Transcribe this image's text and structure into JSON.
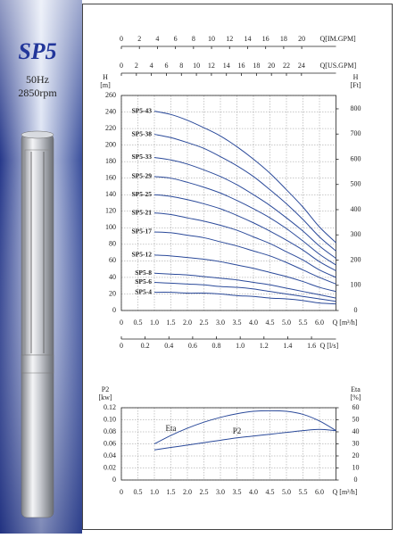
{
  "sidebar": {
    "model": "SP5",
    "frequency": "50Hz",
    "speed": "2850rpm"
  },
  "chart_data": [
    {
      "type": "line",
      "y_label": "H",
      "y_unit": "[m]",
      "y2_label": "H",
      "y2_unit": "[Ft]",
      "x_label": "Q [m³/h]",
      "x": [
        1.0,
        1.5,
        2.0,
        2.5,
        3.0,
        3.5,
        4.0,
        4.5,
        5.0,
        5.5,
        6.0,
        6.5
      ],
      "xlim": [
        0,
        6.5
      ],
      "xticks": [
        0,
        0.5,
        {
          "value": 1,
          "label": "1.0"
        },
        1.5,
        {
          "value": 2,
          "label": "2.0"
        },
        2.5,
        {
          "value": 3,
          "label": "3.0"
        },
        3.5,
        {
          "value": 4,
          "label": "4.0"
        },
        4.5,
        {
          "value": 5,
          "label": "5.0"
        },
        5.5,
        {
          "value": 6,
          "label": "6.0"
        }
      ],
      "ylim": [
        0,
        260
      ],
      "yticks": [
        0,
        20,
        40,
        60,
        80,
        100,
        120,
        140,
        160,
        180,
        200,
        220,
        240,
        260
      ],
      "y2lim": [
        0,
        853
      ],
      "y2ticks": [
        0,
        100,
        200,
        300,
        400,
        500,
        600,
        700,
        800
      ],
      "top_axes": [
        {
          "label": "Q[IM.GPM]",
          "lim": [
            0,
            23.8
          ],
          "ticks": [
            0,
            2,
            4,
            6,
            8,
            10,
            12,
            14,
            16,
            18,
            20
          ]
        },
        {
          "label": "Q[US.GPM]",
          "lim": [
            0,
            28.6
          ],
          "ticks": [
            0,
            2,
            4,
            6,
            8,
            10,
            12,
            14,
            16,
            18,
            20,
            22,
            24
          ]
        }
      ],
      "bottom_axes": [
        {
          "label": "Q [l/s]",
          "lim": [
            0,
            1.806
          ],
          "ticks": [
            0,
            0.2,
            0.4,
            0.6,
            0.8,
            {
              "value": 1,
              "label": "1.0"
            },
            1.2,
            1.4,
            1.6
          ]
        }
      ],
      "grid": true,
      "series": [
        {
          "name": "SP5-43",
          "color": "#2b4a9a",
          "values": [
            241,
            237,
            230,
            221,
            211,
            198,
            183,
            166,
            146,
            125,
            101,
            82
          ]
        },
        {
          "name": "SP5-38",
          "color": "#2b4a9a",
          "values": [
            213,
            209,
            203,
            196,
            186,
            175,
            162,
            146,
            129,
            110,
            89,
            72
          ]
        },
        {
          "name": "SP5-33",
          "color": "#2b4a9a",
          "values": [
            185,
            182,
            177,
            170,
            162,
            152,
            140,
            127,
            112,
            96,
            78,
            63
          ]
        },
        {
          "name": "SP5-29",
          "color": "#2b4a9a",
          "values": [
            162,
            160,
            155,
            149,
            142,
            133,
            123,
            112,
            99,
            84,
            68,
            55
          ]
        },
        {
          "name": "SP5-25",
          "color": "#2b4a9a",
          "values": [
            140,
            138,
            134,
            129,
            123,
            115,
            106,
            96,
            85,
            73,
            59,
            48
          ]
        },
        {
          "name": "SP5-21",
          "color": "#2b4a9a",
          "values": [
            118,
            116,
            112,
            108,
            103,
            97,
            89,
            81,
            71,
            61,
            49,
            40
          ]
        },
        {
          "name": "SP5-17",
          "color": "#2b4a9a",
          "values": [
            95,
            94,
            91,
            88,
            83,
            78,
            72,
            66,
            58,
            49,
            40,
            32
          ]
        },
        {
          "name": "SP5-12",
          "color": "#2b4a9a",
          "values": [
            67,
            66,
            64,
            62,
            59,
            55,
            51,
            46,
            41,
            35,
            28,
            23
          ]
        },
        {
          "name": "SP5-8",
          "color": "#2b4a9a",
          "values": [
            45,
            44,
            43,
            41,
            39,
            37,
            34,
            31,
            27,
            23,
            19,
            15
          ]
        },
        {
          "name": "SP5-6",
          "color": "#2b4a9a",
          "values": [
            34,
            33,
            32,
            31,
            29,
            28,
            26,
            23,
            20,
            17,
            14,
            11
          ]
        },
        {
          "name": "SP5-4",
          "color": "#2b4a9a",
          "values": [
            22,
            22,
            21,
            21,
            20,
            18,
            17,
            15,
            14,
            12,
            9,
            8
          ]
        }
      ]
    },
    {
      "type": "line",
      "y_label": "P2",
      "y_unit": "[kw]",
      "y2_label": "Eta",
      "y2_unit": "[%]",
      "x_label": "Q [m³/h]",
      "x": [
        1.0,
        1.5,
        2.0,
        2.5,
        3.0,
        3.5,
        4.0,
        4.5,
        5.0,
        5.5,
        6.0,
        6.5
      ],
      "xlim": [
        0,
        6.5
      ],
      "xticks": [
        0,
        0.5,
        {
          "value": 1,
          "label": "1.0"
        },
        1.5,
        {
          "value": 2,
          "label": "2.0"
        },
        2.5,
        {
          "value": 3,
          "label": "3.0"
        },
        3.5,
        {
          "value": 4,
          "label": "4.0"
        },
        4.5,
        {
          "value": 5,
          "label": "5.0"
        },
        5.5,
        {
          "value": 6,
          "label": "6.0"
        }
      ],
      "ylim": [
        0,
        0.12
      ],
      "yticks": [
        0,
        0.02,
        0.04,
        0.06,
        0.08,
        {
          "value": 0.1,
          "label": "0.10"
        },
        0.12
      ],
      "y2lim": [
        0,
        60
      ],
      "y2ticks": [
        0,
        10,
        20,
        30,
        40,
        50,
        60
      ],
      "grid": true,
      "series": [
        {
          "name": "Eta",
          "color": "#2b4a9a",
          "axis": "y2",
          "values": [
            30,
            37,
            43,
            48,
            52,
            55,
            57,
            57.5,
            57,
            54.5,
            49,
            41
          ]
        },
        {
          "name": "P2",
          "color": "#2b4a9a",
          "values": [
            0.05,
            0.054,
            0.058,
            0.062,
            0.066,
            0.07,
            0.073,
            0.076,
            0.079,
            0.082,
            0.084,
            0.082
          ]
        }
      ]
    }
  ]
}
